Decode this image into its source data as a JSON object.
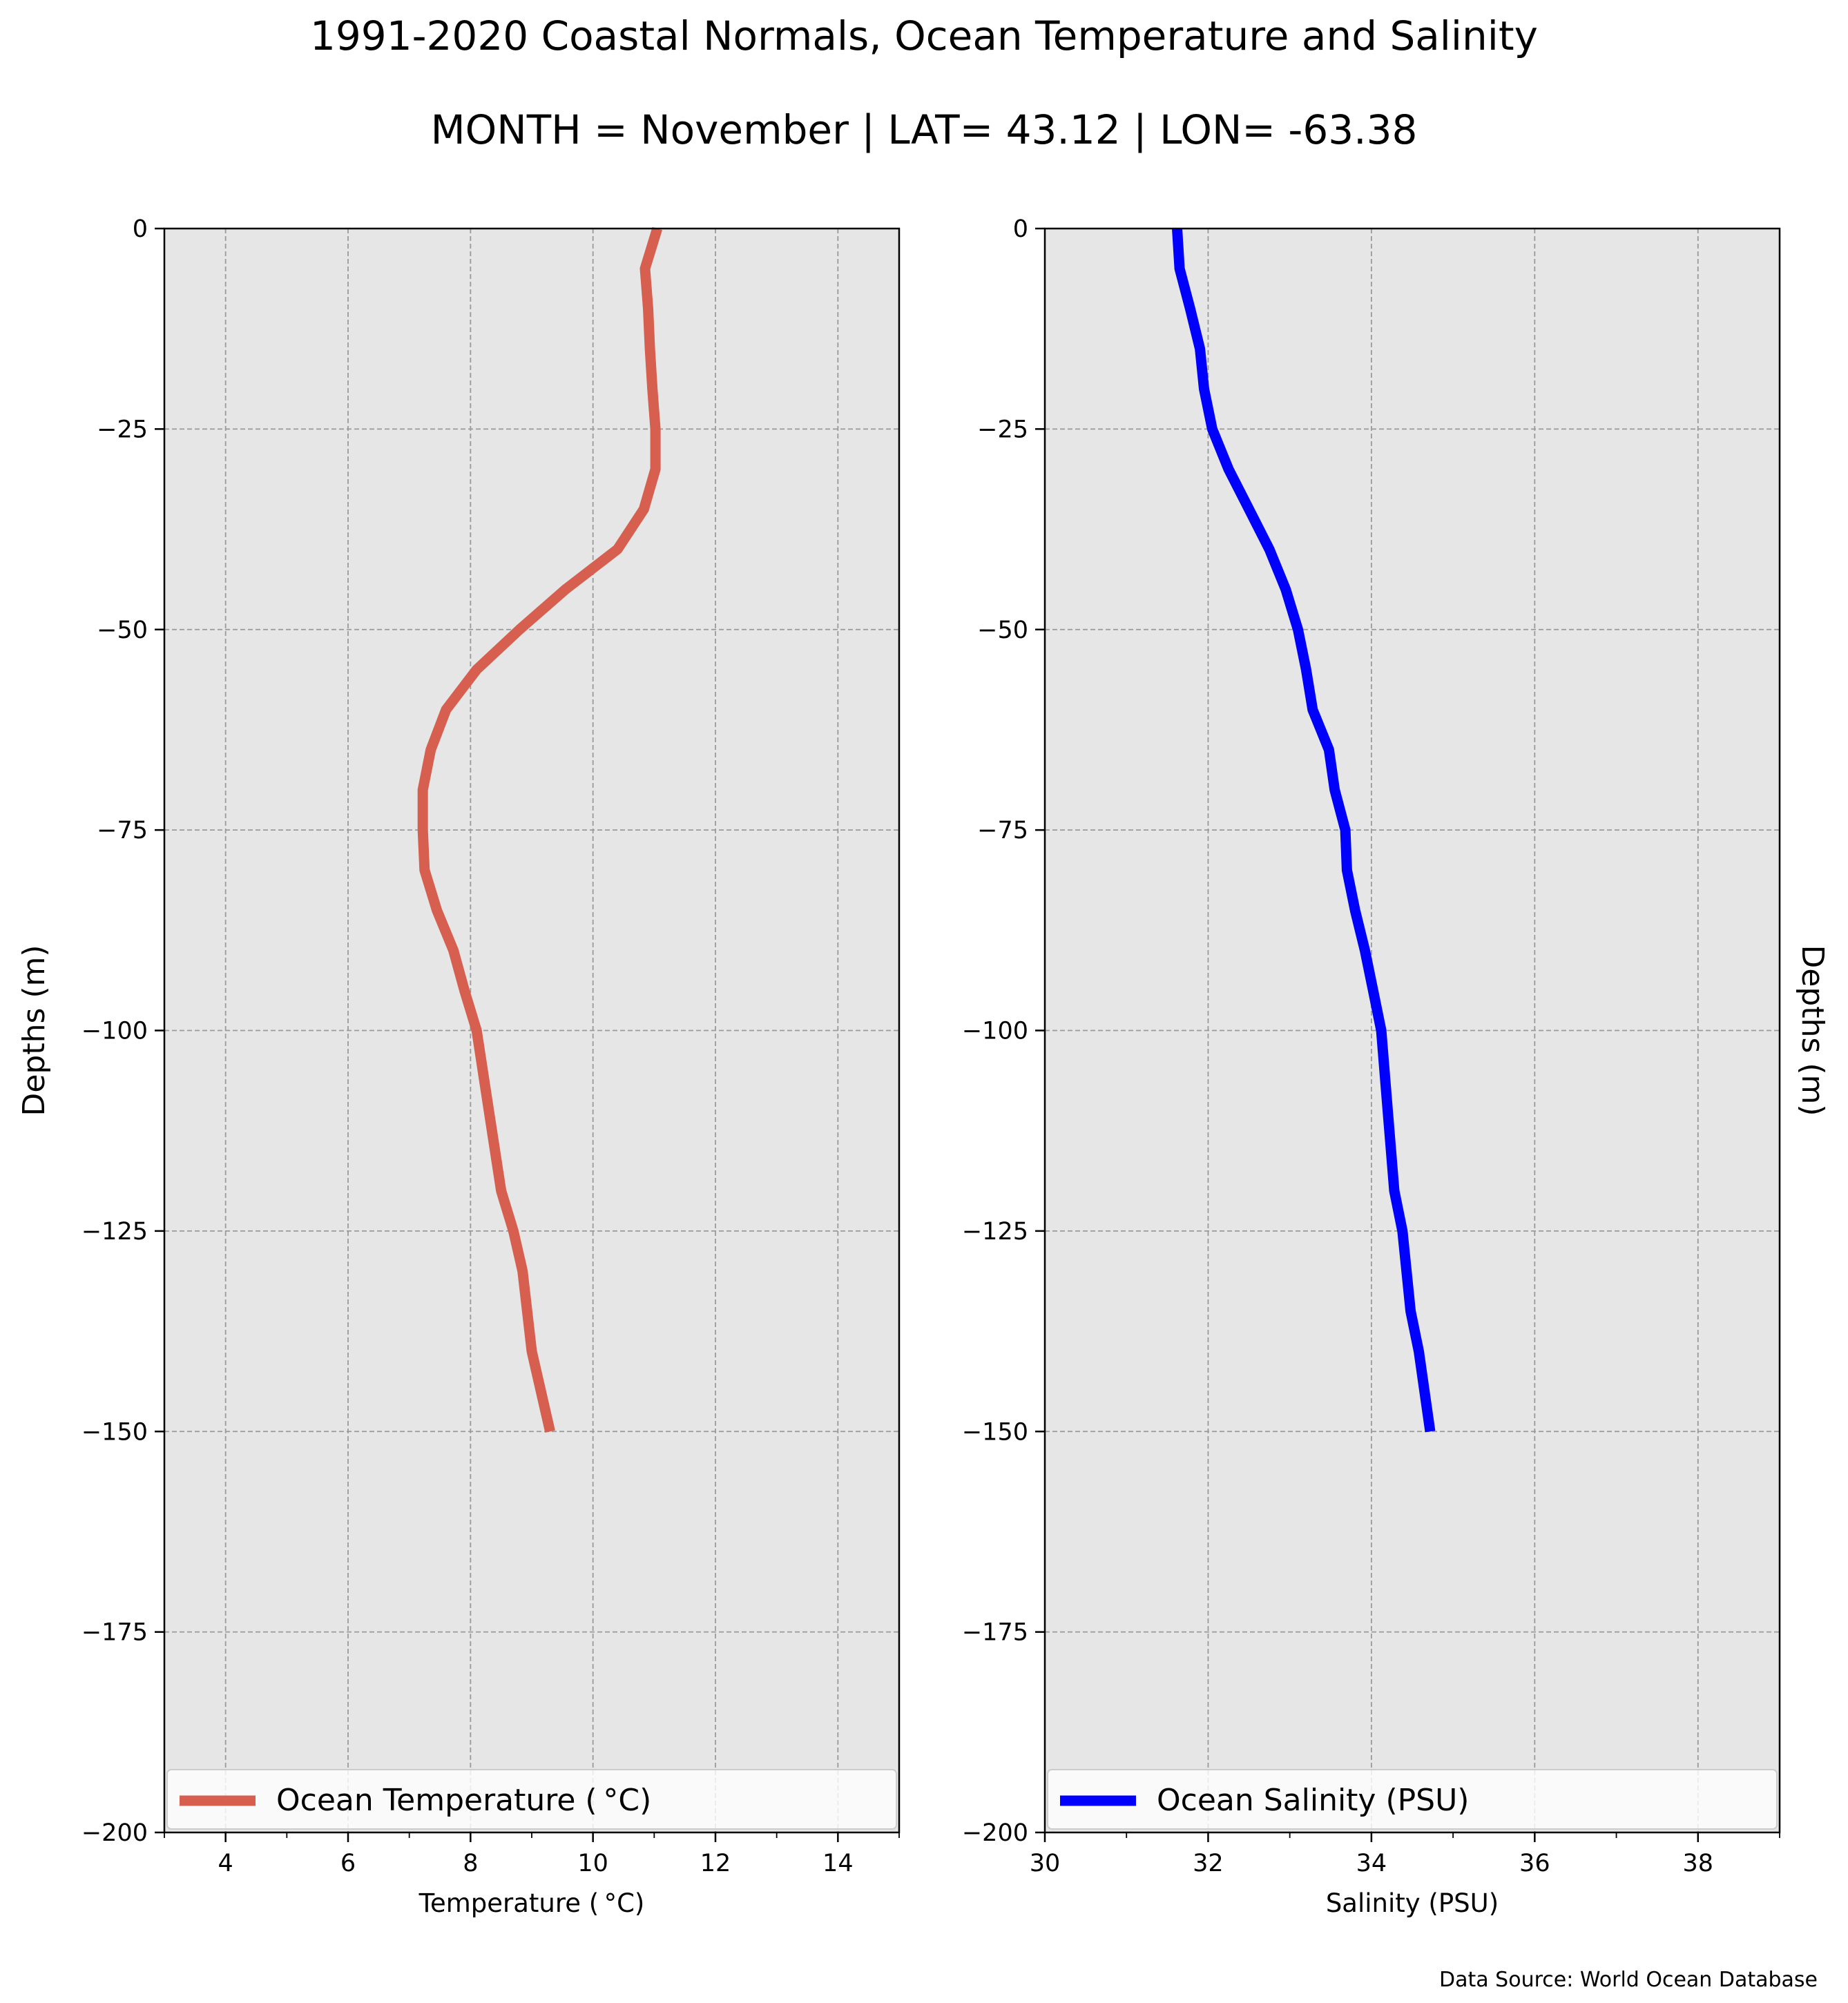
{
  "figure": {
    "title_line1": "1991-2020 Coastal Normals, Ocean Temperature and Salinity",
    "title_line2": "MONTH = November | LAT= 43.12 | LON= -63.38",
    "source_note": "Data Source: World Ocean Database"
  },
  "colors": {
    "panel_bg": "#e6e6e6",
    "grid": "#9a9a9a",
    "temperature": "#d65f4f",
    "salinity": "#0000ff"
  },
  "chart_data": [
    {
      "type": "line",
      "name": "temperature-panel",
      "xlabel": "Temperature ($^\\circ$C)",
      "ylabel": "Depths (m)",
      "ylabel_side": "left",
      "xlim": [
        3,
        15
      ],
      "ylim": [
        -200,
        0
      ],
      "xticks": [
        4,
        6,
        8,
        10,
        12,
        14
      ],
      "xtick_labels": [
        "4",
        "6",
        "8",
        "10",
        "12",
        "14"
      ],
      "x_minor_ticks": [
        3,
        5,
        7,
        9,
        11,
        13,
        15
      ],
      "yticks": [
        0,
        -25,
        -50,
        -75,
        -100,
        -125,
        -150,
        -175,
        -200
      ],
      "ytick_labels": [
        "0",
        "−25",
        "−50",
        "−75",
        "−100",
        "−125",
        "−150",
        "−175",
        "−200"
      ],
      "grid": true,
      "legend": {
        "placement": "bottom",
        "label": "Ocean Temperature ($^\\circ$C)"
      },
      "series": [
        {
          "name": "Ocean Temperature ($^\\circ$C)",
          "color": "#d65f4f",
          "x": [
            11.05,
            10.85,
            10.9,
            10.93,
            10.97,
            11.02,
            11.02,
            10.83,
            10.4,
            9.55,
            8.8,
            8.1,
            7.6,
            7.35,
            7.22,
            7.22,
            7.25,
            7.45,
            7.72,
            7.9,
            8.1,
            8.3,
            8.5,
            8.7,
            8.85,
            9.0,
            9.15,
            9.3
          ],
          "y": [
            0,
            -5,
            -10,
            -15,
            -20,
            -25,
            -30,
            -35,
            -40,
            -45,
            -50,
            -55,
            -60,
            -65,
            -70,
            -75,
            -80,
            -85,
            -90,
            -95,
            -100,
            -110,
            -120,
            -125,
            -130,
            -140,
            -145,
            -150
          ]
        }
      ]
    },
    {
      "type": "line",
      "name": "salinity-panel",
      "xlabel": "Salinity (PSU)",
      "ylabel": "Depths (m)",
      "ylabel_side": "right",
      "xlim": [
        30,
        39
      ],
      "ylim": [
        -200,
        0
      ],
      "xticks": [
        30,
        32,
        34,
        36,
        38
      ],
      "xtick_labels": [
        "30",
        "32",
        "34",
        "36",
        "38"
      ],
      "x_minor_ticks": [
        31,
        33,
        35,
        37,
        39
      ],
      "yticks": [
        0,
        -25,
        -50,
        -75,
        -100,
        -125,
        -150,
        -175,
        -200
      ],
      "ytick_labels": [
        "0",
        "−25",
        "−50",
        "−75",
        "−100",
        "−125",
        "−150",
        "−175",
        "−200"
      ],
      "grid": true,
      "legend": {
        "placement": "bottom",
        "label": "Ocean Salinity (PSU)"
      },
      "series": [
        {
          "name": "Ocean Salinity (PSU)",
          "color": "#0000ff",
          "x": [
            31.62,
            31.65,
            31.78,
            31.9,
            31.95,
            32.05,
            32.25,
            32.5,
            32.75,
            32.95,
            33.1,
            33.2,
            33.28,
            33.48,
            33.55,
            33.68,
            33.7,
            33.8,
            33.92,
            34.02,
            34.12,
            34.2,
            34.28,
            34.38,
            34.48,
            34.58,
            34.72
          ],
          "y": [
            0,
            -5,
            -10,
            -15,
            -20,
            -25,
            -30,
            -35,
            -40,
            -45,
            -50,
            -55,
            -60,
            -65,
            -70,
            -75,
            -80,
            -85,
            -90,
            -95,
            -100,
            -110,
            -120,
            -125,
            -135,
            -140,
            -150
          ]
        }
      ]
    }
  ]
}
